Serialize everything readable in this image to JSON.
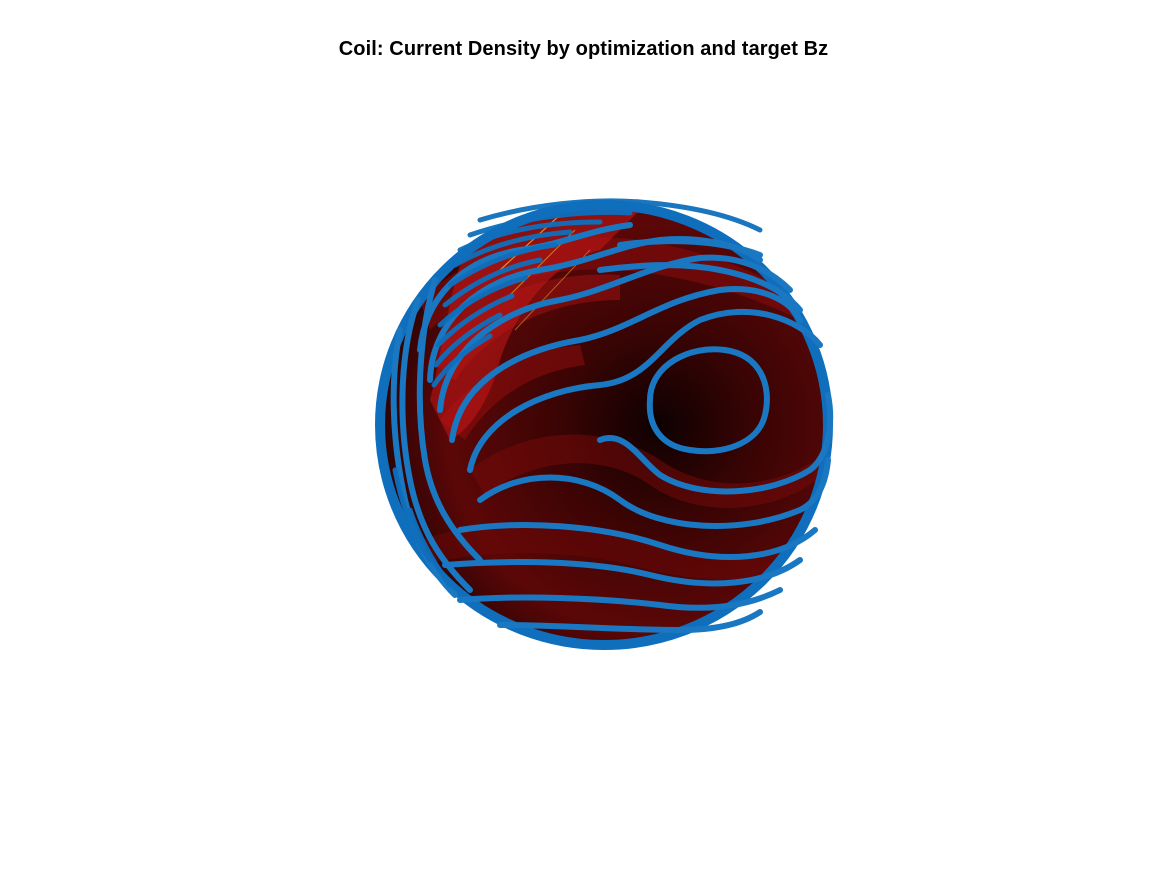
{
  "figure": {
    "title": "Coil: Current Density by optimization and target Bz"
  },
  "colors": {
    "background": "#ffffff",
    "surface_dark": "#1a0202",
    "surface_mid": "#5a0606",
    "surface_red": "#b31212",
    "highlight": "#d8a020",
    "contour": "#1a78c2",
    "contour_dense": "#0f6fbd"
  }
}
